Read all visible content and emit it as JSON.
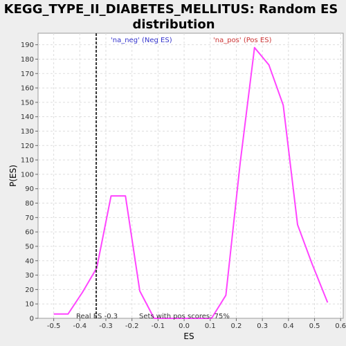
{
  "chart_data": {
    "type": "line",
    "title_line1": "KEGG_TYPE_II_DIABETES_MELLITUS: Random ES",
    "title_line2": "distribution",
    "xlabel": "ES",
    "ylabel": "P(ES)",
    "xlim": [
      -0.56,
      0.61
    ],
    "ylim": [
      0,
      198
    ],
    "x_ticks": [
      -0.5,
      -0.4,
      -0.3,
      -0.2,
      -0.1,
      0.0,
      0.1,
      0.2,
      0.3,
      0.4,
      0.5,
      0.6
    ],
    "x_tick_labels": [
      "-0.5",
      "-0.4",
      "-0.3",
      "-0.2",
      "-0.1",
      "0.0",
      "0.1",
      "0.2",
      "0.3",
      "0.4",
      "0.5",
      "0.6"
    ],
    "y_ticks": [
      0,
      10,
      20,
      30,
      40,
      50,
      60,
      70,
      80,
      90,
      100,
      110,
      120,
      130,
      140,
      150,
      160,
      170,
      180,
      190
    ],
    "y_tick_labels": [
      "0",
      "10",
      "20",
      "30",
      "40",
      "50",
      "60",
      "70",
      "80",
      "90",
      "100",
      "110",
      "120",
      "130",
      "140",
      "150",
      "160",
      "170",
      "180",
      "190"
    ],
    "grid": true,
    "series": [
      {
        "color": "#ff44ff",
        "x": [
          -0.5,
          -0.445,
          -0.39,
          -0.335,
          -0.28,
          -0.225,
          -0.17,
          -0.115,
          -0.06,
          -0.005,
          0.05,
          0.105,
          0.16,
          0.215,
          0.27,
          0.325,
          0.38,
          0.435,
          0.49,
          0.55
        ],
        "y": [
          3,
          3,
          18,
          35,
          85,
          85,
          19,
          0,
          0,
          0,
          0,
          0,
          16,
          108,
          188,
          176,
          148,
          65,
          38,
          11
        ]
      }
    ],
    "real_es": {
      "value": -0.337,
      "label": "Real ES -0.3",
      "color": "#333333"
    },
    "annotations": {
      "neg_label": "'na_neg' (Neg ES)",
      "neg_color": "#3333cc",
      "pos_label": "'na_pos' (Pos ES)",
      "pos_color": "#cc3333",
      "pos_scores_label": "Sets with pos scores: 75%",
      "pos_scores_color": "#333333"
    }
  }
}
